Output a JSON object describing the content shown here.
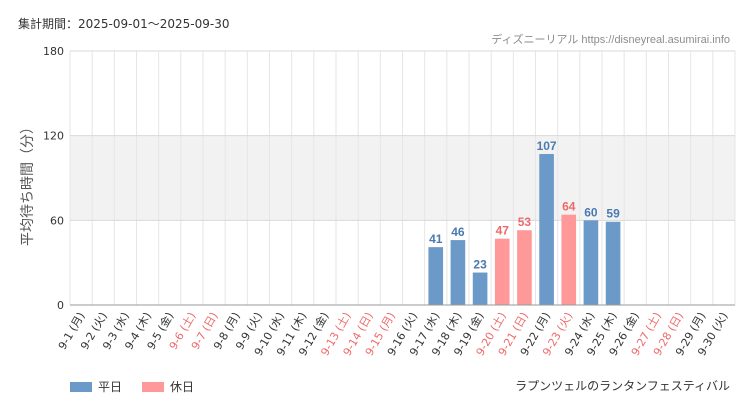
{
  "header": {
    "period": "集計期間：2025-09-01〜2025-09-30",
    "source": "ディズニーリアル https://disneyreal.asumirai.info"
  },
  "legend": {
    "weekday_label": "平日",
    "holiday_label": "休日"
  },
  "attraction_name": "ラプンツェルのランタンフェスティバル",
  "colors": {
    "weekday": "#6b9ac8",
    "holiday": "#ff9999",
    "weekday_text": "#4a7ab0",
    "holiday_text": "#ee6a6a",
    "band": "#f2f2f2",
    "grid": "#e6e6e6"
  },
  "chart_data": {
    "type": "bar",
    "title": "",
    "xlabel": "",
    "ylabel": "平均待ち時間（分）",
    "ylim": [
      0,
      180
    ],
    "yticks": [
      0,
      60,
      120,
      180
    ],
    "shaded_band": [
      60,
      120
    ],
    "grid": true,
    "legend_position": "bottom-left",
    "categories": [
      "9-1 (月)",
      "9-2 (火)",
      "9-3 (水)",
      "9-4 (木)",
      "9-5 (金)",
      "9-6 (土)",
      "9-7 (日)",
      "9-8 (月)",
      "9-9 (火)",
      "9-10 (水)",
      "9-11 (木)",
      "9-12 (金)",
      "9-13 (土)",
      "9-14 (日)",
      "9-15 (月)",
      "9-16 (火)",
      "9-17 (水)",
      "9-18 (木)",
      "9-19 (金)",
      "9-20 (土)",
      "9-21 (日)",
      "9-22 (月)",
      "9-23 (火)",
      "9-24 (水)",
      "9-25 (木)",
      "9-26 (金)",
      "9-27 (土)",
      "9-28 (日)",
      "9-29 (月)",
      "9-30 (火)"
    ],
    "holiday": [
      false,
      false,
      false,
      false,
      false,
      true,
      true,
      false,
      false,
      false,
      false,
      false,
      true,
      true,
      true,
      false,
      false,
      false,
      false,
      true,
      true,
      false,
      true,
      false,
      false,
      false,
      true,
      true,
      false,
      false
    ],
    "series": [
      {
        "name": "平日",
        "values": [
          null,
          null,
          null,
          null,
          null,
          null,
          null,
          null,
          null,
          null,
          null,
          null,
          null,
          null,
          null,
          null,
          41,
          46,
          23,
          null,
          null,
          107,
          null,
          60,
          59,
          null,
          null,
          null,
          null,
          null
        ]
      },
      {
        "name": "休日",
        "values": [
          null,
          null,
          null,
          null,
          null,
          null,
          null,
          null,
          null,
          null,
          null,
          null,
          null,
          null,
          null,
          null,
          null,
          null,
          null,
          47,
          53,
          null,
          64,
          null,
          null,
          null,
          null,
          null,
          null,
          null
        ]
      }
    ]
  }
}
